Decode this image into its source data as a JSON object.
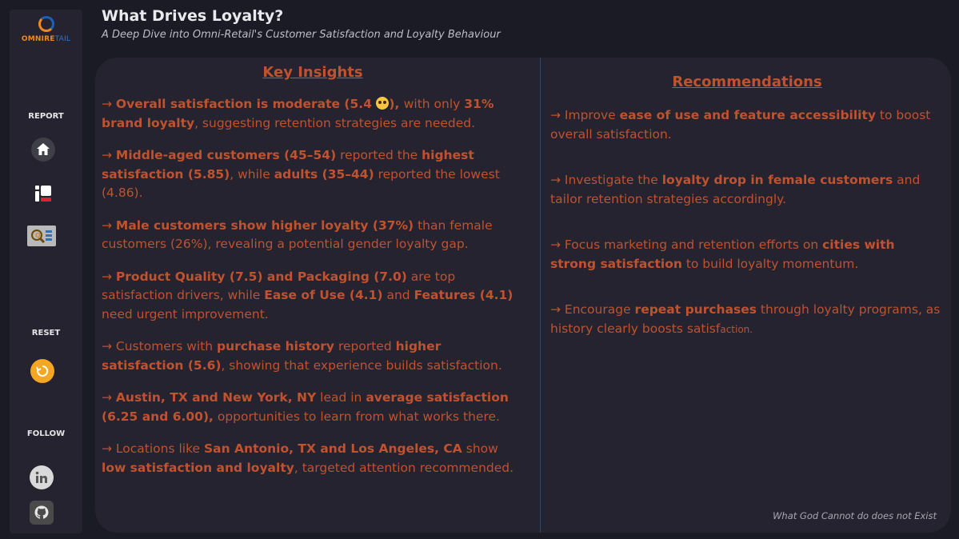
{
  "app": {
    "title": "What Drives Loyalty?",
    "subtitle": "A Deep Dive into Omni-Retail's Customer Satisfaction and Loyalty Behaviour"
  },
  "logo": {
    "part1": "OMNIRE",
    "part2": "TAIL"
  },
  "sidebar": {
    "report_label": "REPORT",
    "reset_label": "RESET",
    "follow_label": "FOLLOW",
    "icons": [
      "home-icon",
      "dashboard-icon",
      "quiz-icon",
      "reset-icon",
      "linkedin-icon",
      "github-icon"
    ]
  },
  "insights": {
    "heading": "Key Insights",
    "items": [
      [
        "→ ",
        "Overall satisfaction is moderate (5.4 ",
        "EMOJI",
        "), ",
        "with only ",
        "31% brand loyalty",
        ", suggesting retention strategies are needed."
      ],
      [
        "→ ",
        "Middle-aged customers (45–54)",
        " reported the ",
        "highest satisfaction (5.85)",
        ", while ",
        "adults (35–44)",
        " reported the lowest (4.86)."
      ],
      [
        "→ ",
        "Male customers show higher loyalty (37%)",
        " than female customers (26%), revealing a potential gender loyalty gap."
      ],
      [
        "→ ",
        "Product Quality (7.5) and Packaging (7.0)",
        " are top satisfaction drivers, while ",
        "Ease of Use (4.1)",
        " and ",
        "Features (4.1)",
        " need urgent improvement."
      ],
      [
        "→ Customers with ",
        "purchase history",
        " reported ",
        "higher satisfaction (5.6)",
        ", showing that experience builds satisfaction."
      ],
      [
        "→ ",
        "Austin, TX and New York, NY",
        " lead in ",
        "average satisfaction (6.25 and 6.00),",
        " opportunities to learn from what works there."
      ],
      [
        "→ Locations like ",
        "San Antonio, TX and Los Angeles, CA",
        " show ",
        "low satisfaction and loyalty",
        ", targeted attention recommended."
      ]
    ]
  },
  "recommendations": {
    "heading": "Recommendations",
    "items": [
      [
        "→ Improve ",
        "ease of use and feature accessibility",
        " to boost overall satisfaction."
      ],
      [
        "→ Investigate the ",
        "loyalty drop in female customers",
        " and tailor retention strategies accordingly."
      ],
      [
        "→ Focus marketing and retention efforts on ",
        "cities with strong satisfaction",
        " to build loyalty momentum."
      ],
      [
        "→ Encourage ",
        "repeat purchases",
        " through loyalty programs, as history clearly boosts satisf",
        "action."
      ]
    ]
  },
  "footer": {
    "quote": "What God Cannot do does not Exist"
  },
  "colors": {
    "accent": "#c0522f",
    "background": "#1b1b26",
    "panel": "#24232f",
    "reset": "#f5a623"
  }
}
